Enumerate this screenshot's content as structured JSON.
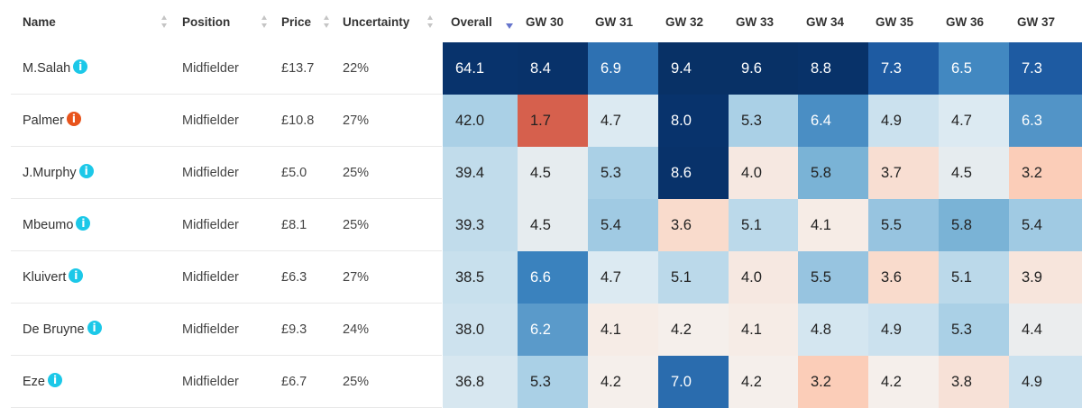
{
  "header": {
    "name": "Name",
    "position": "Position",
    "price": "Price",
    "uncertainty": "Uncertainty",
    "overall": "Overall",
    "gameweeks": [
      "GW 30",
      "GW 31",
      "GW 32",
      "GW 33",
      "GW 34",
      "GW 35",
      "GW 36",
      "GW 37"
    ]
  },
  "info_icon_glyph": "i",
  "colors": {
    "info_normal": "#1cc8e8",
    "info_alert": "#e8541c",
    "sort_active": "#6675cc"
  },
  "rows": [
    {
      "name": "M.Salah",
      "info": "info",
      "position": "Midfielder",
      "price": "£13.7",
      "uncertainty": "22%",
      "overall": "64.1",
      "gw": [
        "8.4",
        "6.9",
        "9.4",
        "9.6",
        "8.8",
        "7.3",
        "6.5",
        "7.3"
      ]
    },
    {
      "name": "Palmer",
      "info": "alert",
      "position": "Midfielder",
      "price": "£10.8",
      "uncertainty": "27%",
      "overall": "42.0",
      "gw": [
        "1.7",
        "4.7",
        "8.0",
        "5.3",
        "6.4",
        "4.9",
        "4.7",
        "6.3"
      ]
    },
    {
      "name": "J.Murphy",
      "info": "info",
      "position": "Midfielder",
      "price": "£5.0",
      "uncertainty": "25%",
      "overall": "39.4",
      "gw": [
        "4.5",
        "5.3",
        "8.6",
        "4.0",
        "5.8",
        "3.7",
        "4.5",
        "3.2"
      ]
    },
    {
      "name": "Mbeumo",
      "info": "info",
      "position": "Midfielder",
      "price": "£8.1",
      "uncertainty": "25%",
      "overall": "39.3",
      "gw": [
        "4.5",
        "5.4",
        "3.6",
        "5.1",
        "4.1",
        "5.5",
        "5.8",
        "5.4"
      ]
    },
    {
      "name": "Kluivert",
      "info": "info",
      "position": "Midfielder",
      "price": "£6.3",
      "uncertainty": "27%",
      "overall": "38.5",
      "gw": [
        "6.6",
        "4.7",
        "5.1",
        "4.0",
        "5.5",
        "3.6",
        "5.1",
        "3.9"
      ]
    },
    {
      "name": "De Bruyne",
      "info": "info",
      "position": "Midfielder",
      "price": "£9.3",
      "uncertainty": "24%",
      "overall": "38.0",
      "gw": [
        "6.2",
        "4.1",
        "4.2",
        "4.1",
        "4.8",
        "4.9",
        "5.3",
        "4.4"
      ]
    },
    {
      "name": "Eze",
      "info": "info",
      "position": "Midfielder",
      "price": "£6.7",
      "uncertainty": "25%",
      "overall": "36.8",
      "gw": [
        "5.3",
        "4.2",
        "7.0",
        "4.2",
        "3.2",
        "4.2",
        "3.8",
        "4.9"
      ]
    }
  ]
}
